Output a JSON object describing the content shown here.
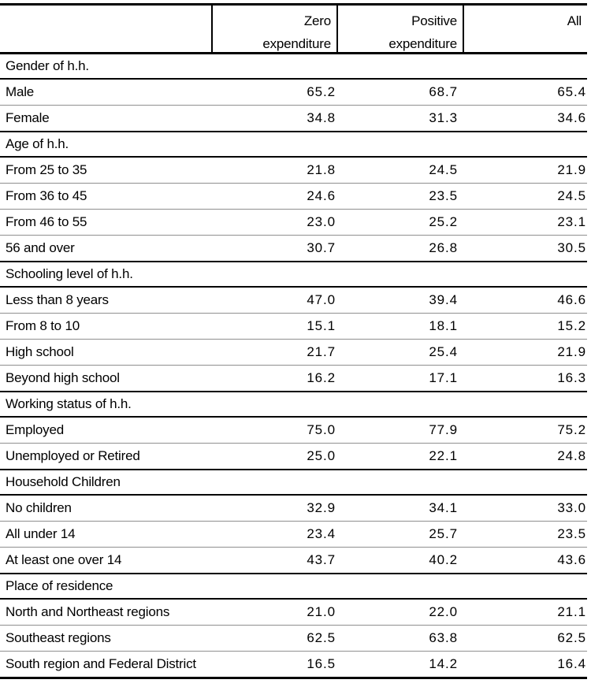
{
  "table": {
    "header": {
      "columns": [
        "Zero\nexpenditure",
        "Positive\nexpenditure",
        "All"
      ]
    },
    "sections": [
      {
        "title": "Gender of h.h.",
        "rows": [
          {
            "label": "Male",
            "values": [
              "65.2",
              "68.7",
              "65.4"
            ]
          },
          {
            "label": "Female",
            "values": [
              "34.8",
              "31.3",
              "34.6"
            ]
          }
        ]
      },
      {
        "title": "Age of h.h.",
        "rows": [
          {
            "label": "From 25 to 35",
            "values": [
              "21.8",
              "24.5",
              "21.9"
            ]
          },
          {
            "label": "From 36 to 45",
            "values": [
              "24.6",
              "23.5",
              "24.5"
            ]
          },
          {
            "label": "From 46 to 55",
            "values": [
              "23.0",
              "25.2",
              "23.1"
            ]
          },
          {
            "label": "56 and over",
            "values": [
              "30.7",
              "26.8",
              "30.5"
            ]
          }
        ]
      },
      {
        "title": "Schooling level of h.h.",
        "rows": [
          {
            "label": "Less than 8 years",
            "values": [
              "47.0",
              "39.4",
              "46.6"
            ]
          },
          {
            "label": "From 8 to 10",
            "values": [
              "15.1",
              "18.1",
              "15.2"
            ]
          },
          {
            "label": "High school",
            "values": [
              "21.7",
              "25.4",
              "21.9"
            ]
          },
          {
            "label": "Beyond high school",
            "values": [
              "16.2",
              "17.1",
              "16.3"
            ]
          }
        ]
      },
      {
        "title": "Working status of h.h.",
        "rows": [
          {
            "label": "Employed",
            "values": [
              "75.0",
              "77.9",
              "75.2"
            ]
          },
          {
            "label": "Unemployed or Retired",
            "values": [
              "25.0",
              "22.1",
              "24.8"
            ]
          }
        ]
      },
      {
        "title": "Household Children",
        "rows": [
          {
            "label": "No children",
            "values": [
              "32.9",
              "34.1",
              "33.0"
            ]
          },
          {
            "label": "All under 14",
            "values": [
              "23.4",
              "25.7",
              "23.5"
            ]
          },
          {
            "label": "At least one over 14",
            "values": [
              "43.7",
              "40.2",
              "43.6"
            ]
          }
        ]
      },
      {
        "title": "Place of residence",
        "rows": [
          {
            "label": "North and Northeast regions",
            "values": [
              "21.0",
              "22.0",
              "21.1"
            ]
          },
          {
            "label": "Southeast regions",
            "values": [
              "62.5",
              "63.8",
              "62.5"
            ]
          },
          {
            "label": "South region and Federal District",
            "values": [
              "16.5",
              "14.2",
              "16.4"
            ]
          }
        ]
      }
    ]
  }
}
